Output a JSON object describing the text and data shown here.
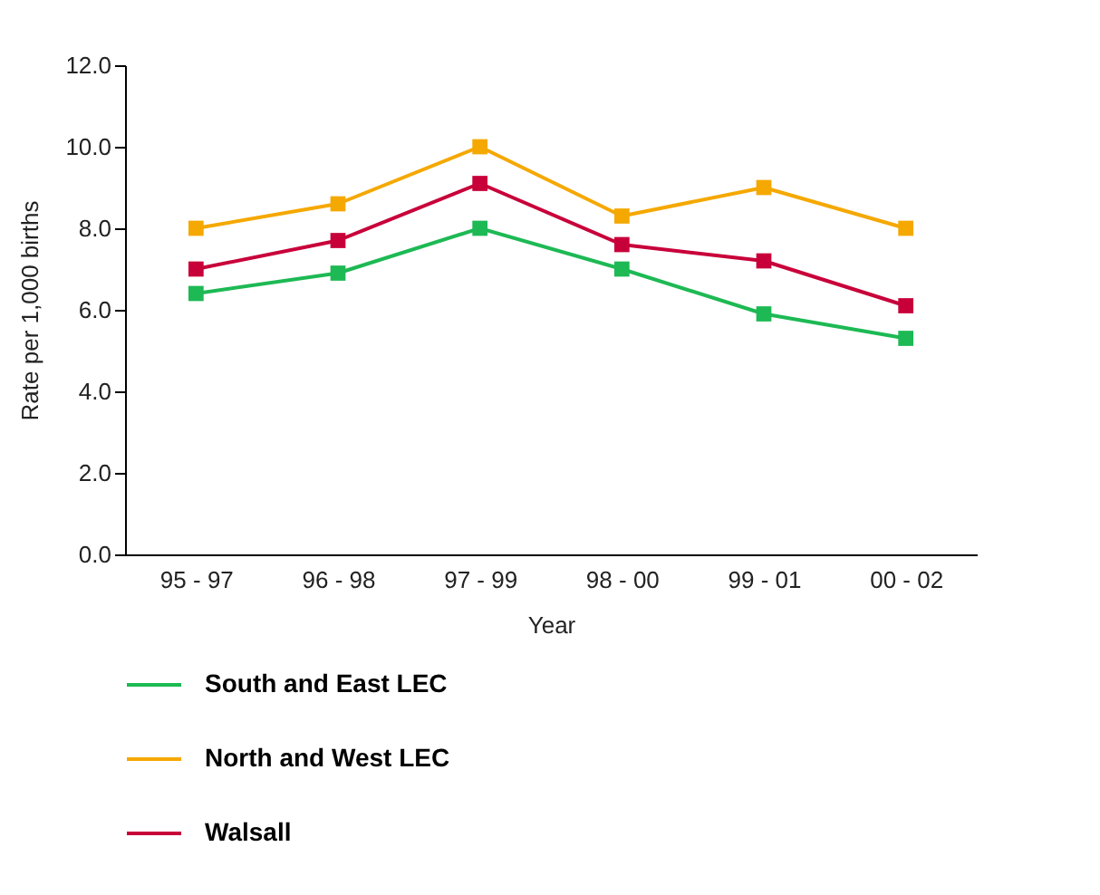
{
  "chart_data": {
    "type": "line",
    "xlabel": "Year",
    "ylabel": "Rate per 1,000 births",
    "categories": [
      "95 - 97",
      "96 - 98",
      "97 - 99",
      "98 - 00",
      "99 - 01",
      "00 - 02"
    ],
    "series": [
      {
        "name": "South and East LEC",
        "color": "#1db954",
        "values": [
          6.4,
          6.9,
          8.0,
          7.0,
          5.9,
          5.3
        ]
      },
      {
        "name": "North and West LEC",
        "color": "#f5a800",
        "values": [
          8.0,
          8.6,
          10.0,
          8.3,
          9.0,
          8.0
        ]
      },
      {
        "name": "Walsall",
        "color": "#c8003a",
        "values": [
          7.0,
          7.7,
          9.1,
          7.6,
          7.2,
          6.1
        ]
      }
    ],
    "ylim": [
      0,
      12
    ],
    "yticks": [
      {
        "value": 0,
        "label": "0.0"
      },
      {
        "value": 2,
        "label": "2.0"
      },
      {
        "value": 4,
        "label": "4.0"
      },
      {
        "value": 6,
        "label": "6.0"
      },
      {
        "value": 8,
        "label": "8.0"
      },
      {
        "value": 10,
        "label": "10.0"
      },
      {
        "value": 12,
        "label": "12.0"
      }
    ],
    "grid": false,
    "legend": "bottom left",
    "marker": "square",
    "line_style": "solid"
  }
}
